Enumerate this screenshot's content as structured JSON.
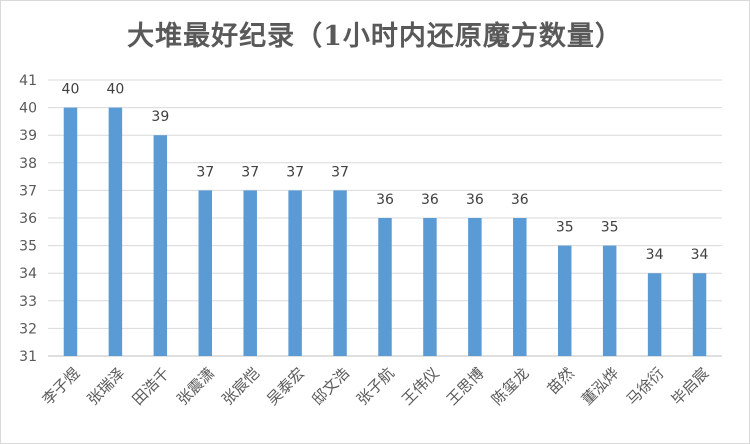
{
  "chart_data": {
    "type": "bar",
    "title": "大堆最好纪录（1小时内还原魔方数量）",
    "categories": [
      "李子煜",
      "张瑞泽",
      "田浩千",
      "张震潇",
      "张宸恺",
      "吴泰宏",
      "邸文浩",
      "张子航",
      "王伟仪",
      "王思博",
      "陈玺龙",
      "苗然",
      "董泓烨",
      "马徐衍",
      "毕启宸"
    ],
    "values": [
      40,
      40,
      39,
      37,
      37,
      37,
      37,
      36,
      36,
      36,
      36,
      35,
      35,
      34,
      34
    ],
    "ylim": [
      31,
      41
    ],
    "yticks": [
      31,
      32,
      33,
      34,
      35,
      36,
      37,
      38,
      39,
      40,
      41
    ],
    "xlabel": "",
    "ylabel": "",
    "grid": true,
    "bar_color": "#5b9bd5",
    "grid_color": "#d9d9d9"
  }
}
